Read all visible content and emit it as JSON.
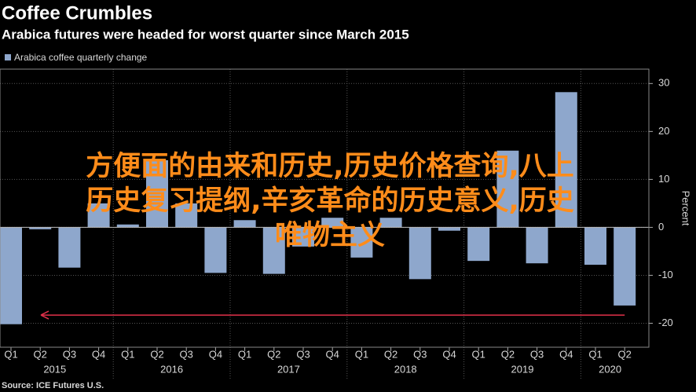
{
  "chart_data": {
    "type": "bar",
    "title": "Coffee Crumbles",
    "subtitle": "Arabica futures were headed for worst quarter since March 2015",
    "y_axis_label": "Percent",
    "source": "Source: ICE Futures U.S.",
    "categories": [
      "Q1",
      "Q2",
      "Q3",
      "Q4",
      "Q1",
      "Q2",
      "Q3",
      "Q4",
      "Q1",
      "Q2",
      "Q3",
      "Q4",
      "Q1",
      "Q2",
      "Q3",
      "Q4",
      "Q1",
      "Q2",
      "Q3",
      "Q4",
      "Q1",
      "Q2"
    ],
    "year_groups": [
      "2015",
      "2016",
      "2017",
      "2018",
      "2019",
      "2020"
    ],
    "series": [
      {
        "name": "Arabica coffee quarterly change",
        "color": "#8ea7cc",
        "values": [
          -20.2,
          -0.4,
          -8.4,
          5,
          0.6,
          14,
          5,
          -9.5,
          1.5,
          -9.7,
          -4,
          2,
          -6.3,
          2,
          -10.8,
          -0.7,
          -7,
          16,
          -7.5,
          28.2,
          -7.8,
          -16.3
        ]
      }
    ],
    "reference_value": -18.3,
    "ylim": [
      -25,
      33
    ],
    "yticks": [
      -20,
      -10,
      0,
      10,
      20,
      30
    ],
    "grid": true,
    "overlay_text": [
      "方便面的由来和历史,历史价格查询,八上",
      "历史复习提纲,辛亥革命的历史意义,历史",
      "唯物主义"
    ]
  }
}
